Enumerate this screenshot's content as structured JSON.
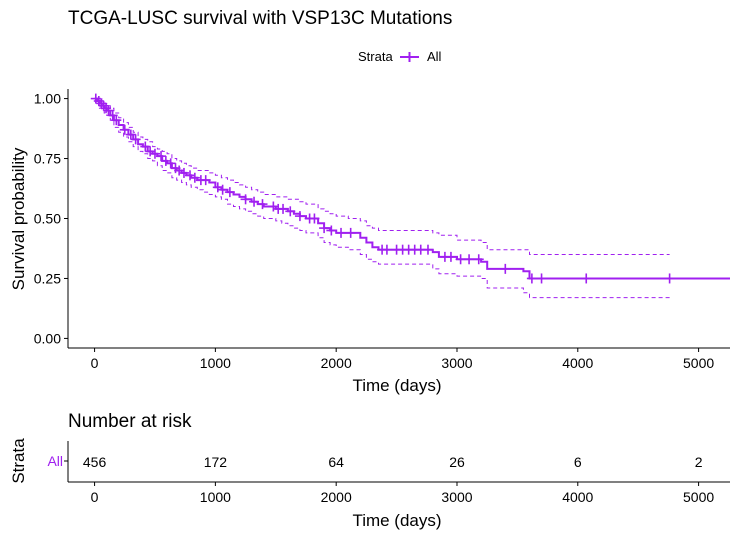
{
  "chart_data": [
    {
      "type": "line",
      "subtype": "kaplan-meier",
      "title": "TCGA-LUSC survival with VSP13C Mutations",
      "xlabel": "Time (days)",
      "ylabel": "Survival probability",
      "xlim": [
        -220,
        5260
      ],
      "ylim": [
        -0.04,
        1.04
      ],
      "xticks": [
        0,
        1000,
        2000,
        3000,
        4000,
        5000
      ],
      "yticks": [
        0.0,
        0.25,
        0.5,
        0.75,
        1.0
      ],
      "ytick_labels": [
        "0.00",
        "0.25",
        "0.50",
        "0.75",
        "1.00"
      ],
      "grid": false,
      "legend": {
        "title": "Strata",
        "position": "top",
        "entries": [
          "All"
        ]
      },
      "series": [
        {
          "name": "All",
          "color": "#a020f0",
          "x": [
            0,
            20,
            40,
            60,
            80,
            100,
            130,
            160,
            200,
            240,
            280,
            320,
            360,
            400,
            440,
            480,
            520,
            560,
            600,
            640,
            680,
            720,
            760,
            800,
            850,
            900,
            950,
            1000,
            1050,
            1100,
            1150,
            1200,
            1250,
            1300,
            1350,
            1400,
            1450,
            1500,
            1550,
            1600,
            1650,
            1700,
            1750,
            1800,
            1850,
            1900,
            1950,
            2000,
            2100,
            2200,
            2250,
            2300,
            2350,
            2800,
            2850,
            3000,
            3200,
            3250,
            3550,
            3600,
            5260
          ],
          "y": [
            1.0,
            0.99,
            0.98,
            0.97,
            0.96,
            0.95,
            0.93,
            0.91,
            0.89,
            0.87,
            0.85,
            0.83,
            0.81,
            0.8,
            0.78,
            0.77,
            0.76,
            0.74,
            0.73,
            0.71,
            0.7,
            0.69,
            0.68,
            0.67,
            0.66,
            0.66,
            0.65,
            0.63,
            0.62,
            0.61,
            0.6,
            0.59,
            0.58,
            0.57,
            0.56,
            0.55,
            0.55,
            0.54,
            0.54,
            0.53,
            0.52,
            0.51,
            0.5,
            0.5,
            0.48,
            0.46,
            0.45,
            0.44,
            0.44,
            0.42,
            0.4,
            0.38,
            0.37,
            0.36,
            0.34,
            0.33,
            0.32,
            0.29,
            0.28,
            0.25,
            0.25
          ],
          "ci_upper": [
            1.0,
            1.0,
            1.0,
            0.99,
            0.98,
            0.97,
            0.96,
            0.94,
            0.92,
            0.9,
            0.88,
            0.86,
            0.84,
            0.83,
            0.82,
            0.8,
            0.79,
            0.78,
            0.77,
            0.75,
            0.74,
            0.73,
            0.72,
            0.71,
            0.7,
            0.7,
            0.69,
            0.68,
            0.67,
            0.66,
            0.65,
            0.64,
            0.63,
            0.62,
            0.61,
            0.6,
            0.6,
            0.59,
            0.59,
            0.58,
            0.58,
            0.57,
            0.56,
            0.56,
            0.54,
            0.53,
            0.52,
            0.51,
            0.5,
            0.49,
            0.47,
            0.46,
            0.45,
            0.44,
            0.43,
            0.41,
            0.4,
            0.37,
            0.37,
            0.35,
            0.35
          ],
          "ci_lower": [
            1.0,
            0.98,
            0.96,
            0.95,
            0.94,
            0.93,
            0.91,
            0.88,
            0.86,
            0.84,
            0.82,
            0.8,
            0.78,
            0.77,
            0.75,
            0.74,
            0.72,
            0.7,
            0.69,
            0.67,
            0.66,
            0.65,
            0.64,
            0.63,
            0.62,
            0.61,
            0.6,
            0.59,
            0.58,
            0.56,
            0.55,
            0.54,
            0.53,
            0.52,
            0.51,
            0.5,
            0.5,
            0.49,
            0.48,
            0.47,
            0.46,
            0.45,
            0.44,
            0.44,
            0.42,
            0.4,
            0.39,
            0.38,
            0.37,
            0.35,
            0.33,
            0.32,
            0.31,
            0.29,
            0.27,
            0.26,
            0.25,
            0.21,
            0.19,
            0.17,
            0.17
          ],
          "censor_x": [
            10,
            35,
            55,
            75,
            95,
            115,
            150,
            180,
            250,
            300,
            340,
            420,
            460,
            500,
            550,
            590,
            630,
            670,
            700,
            740,
            790,
            830,
            880,
            920,
            1020,
            1060,
            1120,
            1250,
            1320,
            1390,
            1480,
            1520,
            1560,
            1620,
            1700,
            1780,
            1820,
            1900,
            1960,
            2040,
            2120,
            2380,
            2420,
            2500,
            2550,
            2600,
            2650,
            2700,
            2760,
            2900,
            2950,
            3030,
            3100,
            3180,
            3400,
            3620,
            3700,
            4070,
            4760
          ]
        }
      ]
    },
    {
      "type": "table",
      "title": "Number at risk",
      "xlabel": "Time (days)",
      "ylabel": "Strata",
      "row_labels": [
        "All"
      ],
      "x": [
        0,
        1000,
        2000,
        3000,
        4000,
        5000
      ],
      "values": [
        456,
        172,
        64,
        26,
        6,
        2
      ],
      "xticks": [
        0,
        1000,
        2000,
        3000,
        4000,
        5000
      ]
    }
  ]
}
